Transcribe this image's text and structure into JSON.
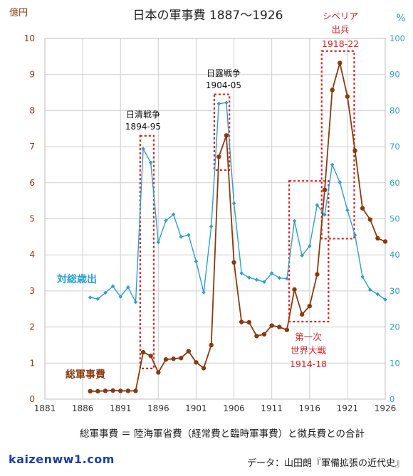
{
  "chart_data": {
    "type": "line",
    "title": "日本の軍事費 1887～1926",
    "y_left_label": "億円",
    "y_right_label": "%",
    "x_range": [
      1881,
      1926
    ],
    "x_ticks": [
      "1881",
      "1886",
      "1891",
      "1896",
      "1901",
      "1906",
      "1911",
      "1916",
      "1921",
      "1926"
    ],
    "y_left_range": [
      0,
      10
    ],
    "y_left_ticks": [
      "0",
      "1",
      "2",
      "3",
      "4",
      "5",
      "6",
      "7",
      "8",
      "9",
      "10"
    ],
    "y_right_range": [
      0,
      100
    ],
    "y_right_ticks": [
      "0",
      "10",
      "20",
      "30",
      "40",
      "50",
      "60",
      "70",
      "80",
      "90",
      "100"
    ],
    "grid": true,
    "series": [
      {
        "name": "総軍事費",
        "axis": "left",
        "color": "#8b3a0e",
        "x": [
          1887,
          1888,
          1889,
          1890,
          1891,
          1892,
          1893,
          1894,
          1895,
          1896,
          1897,
          1898,
          1899,
          1900,
          1901,
          1902,
          1903,
          1904,
          1905,
          1906,
          1907,
          1908,
          1909,
          1910,
          1911,
          1912,
          1913,
          1914,
          1915,
          1916,
          1917,
          1918,
          1919,
          1920,
          1921,
          1922,
          1923,
          1924,
          1925,
          1926
        ],
        "values": [
          0.22,
          0.22,
          0.23,
          0.24,
          0.23,
          0.23,
          0.23,
          1.3,
          1.2,
          0.74,
          1.1,
          1.12,
          1.14,
          1.33,
          1.02,
          0.86,
          1.5,
          6.72,
          7.31,
          3.79,
          2.14,
          2.13,
          1.75,
          1.8,
          2.04,
          2.0,
          1.92,
          3.04,
          2.35,
          2.58,
          3.46,
          5.8,
          8.57,
          9.32,
          8.39,
          6.89,
          5.29,
          4.98,
          4.46,
          4.37
        ]
      },
      {
        "name": "対総歳出",
        "axis": "right",
        "color": "#2b9fd4",
        "x": [
          1887,
          1888,
          1889,
          1890,
          1891,
          1892,
          1893,
          1894,
          1895,
          1896,
          1897,
          1898,
          1899,
          1900,
          1901,
          1902,
          1903,
          1904,
          1905,
          1906,
          1907,
          1908,
          1909,
          1910,
          1911,
          1912,
          1913,
          1914,
          1915,
          1916,
          1917,
          1918,
          1919,
          1920,
          1921,
          1922,
          1923,
          1924,
          1925,
          1926
        ],
        "values": [
          28.2,
          27.8,
          29.5,
          31.3,
          28.4,
          31.0,
          26.9,
          69.4,
          65.6,
          43.5,
          49.5,
          51.2,
          45.0,
          45.5,
          38.2,
          29.6,
          47.9,
          81.9,
          82.2,
          54.3,
          34.9,
          33.7,
          33.1,
          32.5,
          34.9,
          33.6,
          33.4,
          49.4,
          39.8,
          42.4,
          53.8,
          51.1,
          65.0,
          60.1,
          52.4,
          45.5,
          33.9,
          30.3,
          29.1,
          27.6
        ]
      }
    ],
    "annotations": [
      {
        "label": "日清戦争",
        "years": "1894-95",
        "color": "#111111"
      },
      {
        "label": "日露戦争",
        "years": "1904-05",
        "color": "#111111"
      },
      {
        "label": "第一次 世界大戦",
        "years": "1914-18",
        "color": "#e02020"
      },
      {
        "label": "シベリア 出兵",
        "years": "1918-22",
        "color": "#e02020"
      }
    ]
  },
  "footer": {
    "note": "総軍事費 ＝ 陸海軍省費（経常費と臨時軍事費）と徴兵費との合計",
    "site": "kaizenww1.com",
    "source": "データ：山田朗『軍備拡張の近代史』"
  }
}
